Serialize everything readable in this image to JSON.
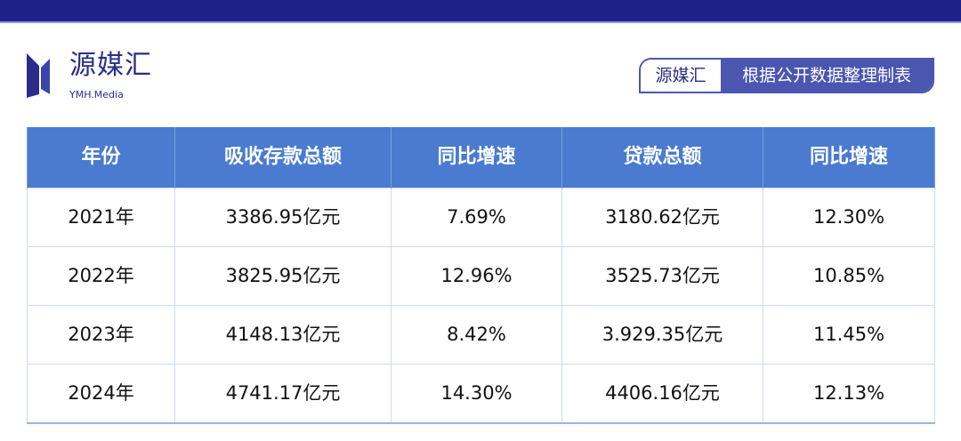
{
  "header": {
    "bar_color": "#1f2189"
  },
  "logo": {
    "name": "源媒汇",
    "subtitle": "YMH.Media"
  },
  "badge": {
    "brand": "源媒汇",
    "text": "根据公开数据整理制表"
  },
  "table": {
    "columns": [
      "年份",
      "吸收存款总额",
      "同比增速",
      "贷款总额",
      "同比增速"
    ],
    "rows": [
      [
        "2021年",
        "3386.95亿元",
        "7.69%",
        "3180.62亿元",
        "12.30%"
      ],
      [
        "2022年",
        "3825.95亿元",
        "12.96%",
        "3525.73亿元",
        "10.85%"
      ],
      [
        "2023年",
        "4148.13亿元",
        "8.42%",
        "3.929.35亿元",
        "11.45%"
      ],
      [
        "2024年",
        "4741.17亿元",
        "14.30%",
        "4406.16亿元",
        "12.13%"
      ]
    ],
    "header_color": "#4a7bd0"
  }
}
